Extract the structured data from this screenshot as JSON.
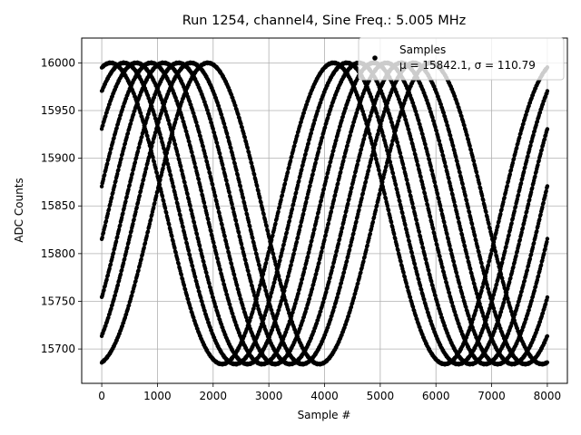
{
  "chart_data": {
    "type": "scatter",
    "title": "Run 1254, channel4, Sine Freq.: 5.005 MHz",
    "xlabel": "Sample #",
    "ylabel": "ADC Counts",
    "xlim": [
      -360,
      8360
    ],
    "ylim": [
      15664,
      16026
    ],
    "xticks": [
      0,
      1000,
      2000,
      3000,
      4000,
      5000,
      6000,
      7000,
      8000
    ],
    "yticks": [
      15700,
      15750,
      15800,
      15850,
      15900,
      15950,
      16000
    ],
    "grid": true,
    "legend": {
      "placement": "upper right",
      "entries": [
        {
          "label": "Samples",
          "marker": "dot",
          "color": "#000000"
        },
        {
          "label": "μ = 15842.1, σ = 110.79"
        }
      ]
    },
    "series": [
      {
        "marker_color": "#000000",
        "model": {
          "description": "sampled sine wave folded into 8 traces",
          "mean": 15842.1,
          "amplitude": 157.9,
          "start_values": [
            15995,
            15970,
            15931,
            15871,
            15815,
            15754,
            15714,
            15686
          ],
          "half_period_samples": 2000,
          "x_range": [
            0,
            8000
          ],
          "x_step": 10
        }
      }
    ]
  }
}
